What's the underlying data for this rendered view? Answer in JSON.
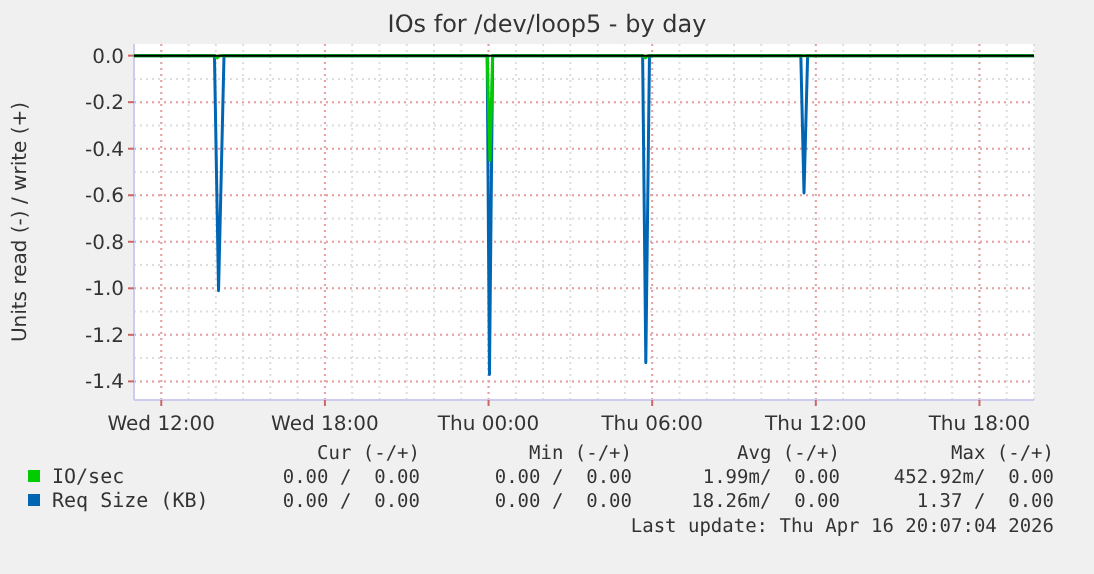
{
  "chart_data": {
    "type": "line",
    "title": "IOs for /dev/loop5 - by day",
    "ylabel": "Units read (-) / write (+)",
    "xlim": [
      "2026-04-15T11:00",
      "2026-04-16T20:00"
    ],
    "xticks": [
      {
        "value": "2026-04-15T12:00",
        "label": "Wed 12:00"
      },
      {
        "value": "2026-04-15T18:00",
        "label": "Wed 18:00"
      },
      {
        "value": "2026-04-16T00:00",
        "label": "Thu 00:00"
      },
      {
        "value": "2026-04-16T06:00",
        "label": "Thu 06:00"
      },
      {
        "value": "2026-04-16T12:00",
        "label": "Thu 12:00"
      },
      {
        "value": "2026-04-16T18:00",
        "label": "Thu 18:00"
      }
    ],
    "ylim": [
      -1.48,
      0.05
    ],
    "yticks": [
      {
        "value": 0,
        "label": "0.0"
      },
      {
        "value": -0.2,
        "label": "-0.2"
      },
      {
        "value": -0.4,
        "label": "-0.4"
      },
      {
        "value": -0.6,
        "label": "-0.6"
      },
      {
        "value": -0.8,
        "label": "-0.8"
      },
      {
        "value": -1,
        "label": "-1.0"
      },
      {
        "value": -1.2,
        "label": "-1.2"
      },
      {
        "value": -1.4,
        "label": "-1.4"
      }
    ],
    "grid": true,
    "legend": "bottom",
    "marker": "none",
    "line_style": "solid",
    "ref_lines": [
      {
        "axis": "y",
        "value": 0,
        "color": "#000000"
      }
    ],
    "series": [
      {
        "name": "IO/sec",
        "color": "#00cc00",
        "x": [
          "2026-04-15T11:00",
          "2026-04-15T13:57",
          "2026-04-15T14:03",
          "2026-04-15T14:09",
          "2026-04-15T23:57",
          "2026-04-16T00:03",
          "2026-04-16T00:09",
          "2026-04-16T05:39",
          "2026-04-16T05:45",
          "2026-04-16T05:51",
          "2026-04-16T20:00"
        ],
        "values": [
          0,
          0,
          -0.01,
          0,
          0,
          -0.45,
          0,
          0,
          -0.01,
          0,
          0
        ]
      },
      {
        "name": "Req Size (KB)",
        "color": "#0066b3",
        "x": [
          "2026-04-15T11:00",
          "2026-04-15T13:57",
          "2026-04-15T14:06",
          "2026-04-15T14:18",
          "2026-04-15T23:57",
          "2026-04-16T00:02",
          "2026-04-16T00:09",
          "2026-04-16T05:39",
          "2026-04-16T05:46",
          "2026-04-16T05:54",
          "2026-04-16T11:27",
          "2026-04-16T11:34",
          "2026-04-16T11:42",
          "2026-04-16T20:00"
        ],
        "values": [
          0,
          0,
          -1.01,
          0,
          0,
          -1.37,
          0,
          0,
          -1.32,
          0,
          0,
          -0.59,
          0,
          0
        ]
      }
    ],
    "annotations": [
      "Cur (-/+)",
      "Min (-/+)",
      "Avg (-/+)",
      "Max (-/+)",
      "0.00 /  0.00",
      "0.00 /  0.00",
      "1.99m/  0.00",
      "452.92m/  0.00",
      "0.00 /  0.00",
      "0.00 /  0.00",
      "18.26m/  0.00",
      "1.37 /  0.00",
      "Last update: Thu Apr 16 20:07:04 2026"
    ]
  }
}
